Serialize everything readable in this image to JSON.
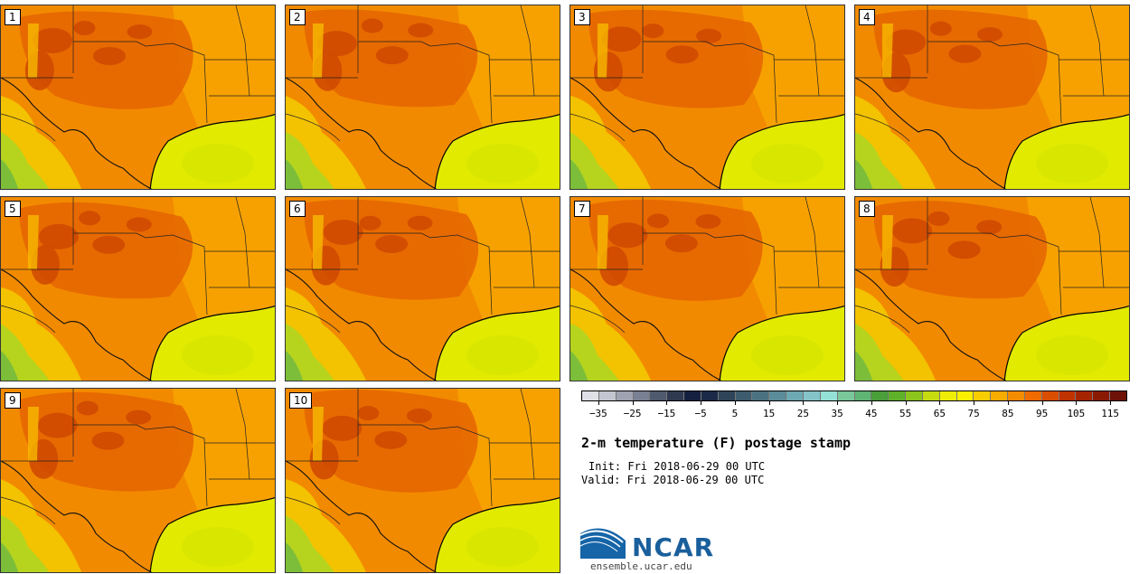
{
  "panels": [
    {
      "label": "1"
    },
    {
      "label": "2"
    },
    {
      "label": "3"
    },
    {
      "label": "4"
    },
    {
      "label": "5"
    },
    {
      "label": "6"
    },
    {
      "label": "7"
    },
    {
      "label": "8"
    },
    {
      "label": "9"
    },
    {
      "label": "10"
    }
  ],
  "colorbar": {
    "colors": [
      "#dfe0e6",
      "#c3c6d0",
      "#9ea2b1",
      "#7a8093",
      "#4f5a6f",
      "#2f3a51",
      "#152040",
      "#1c2a47",
      "#2f4459",
      "#3e5c6e",
      "#4b7281",
      "#5b8c99",
      "#6ea8b2",
      "#84c3c8",
      "#95e0d6",
      "#79c79a",
      "#5fb574",
      "#4a9f3b",
      "#60b12a",
      "#8cc51c",
      "#c7dc10",
      "#eeed08",
      "#fcef00",
      "#f8ce00",
      "#f7ac00",
      "#f38c00",
      "#ef6b00",
      "#d94e00",
      "#bf3300",
      "#a52400",
      "#8b1a05",
      "#6e1208"
    ],
    "tick_labels": [
      "−35",
      "−25",
      "−15",
      "−5",
      "5",
      "15",
      "25",
      "35",
      "45",
      "55",
      "65",
      "75",
      "85",
      "95",
      "105",
      "115"
    ],
    "range": [
      -40,
      120
    ]
  },
  "title": "2-m temperature (F) postage stamp",
  "init": "Init: Fri 2018-06-29 00 UTC",
  "valid": "Valid: Fri 2018-06-29 00 UTC",
  "logo": {
    "name": "NCAR",
    "url": "ensemble.ucar.edu"
  }
}
